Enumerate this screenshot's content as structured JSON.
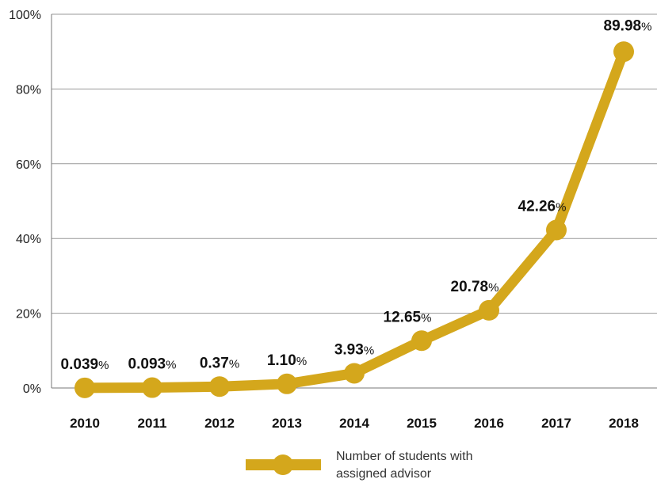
{
  "chart_data": {
    "type": "line",
    "x": [
      "2010",
      "2011",
      "2012",
      "2013",
      "2014",
      "2015",
      "2016",
      "2017",
      "2018"
    ],
    "series": [
      {
        "name": "Number of students with assigned advisor",
        "values": [
          0.039,
          0.093,
          0.37,
          1.1,
          3.93,
          12.65,
          20.78,
          42.26,
          89.98
        ],
        "labels": [
          "0.039",
          "0.093",
          "0.37",
          "1.10",
          "3.93",
          "12.65",
          "20.78",
          "42.26",
          "89.98"
        ],
        "unit": "%"
      }
    ],
    "ylim": [
      0,
      100
    ],
    "yticks": [
      "0%",
      "20%",
      "40%",
      "60%",
      "80%",
      "100%"
    ],
    "grid": true,
    "legend_position": "bottom-center",
    "colors": {
      "line": "#D4A71C",
      "grid": "#999999",
      "axis": "#777777"
    }
  }
}
